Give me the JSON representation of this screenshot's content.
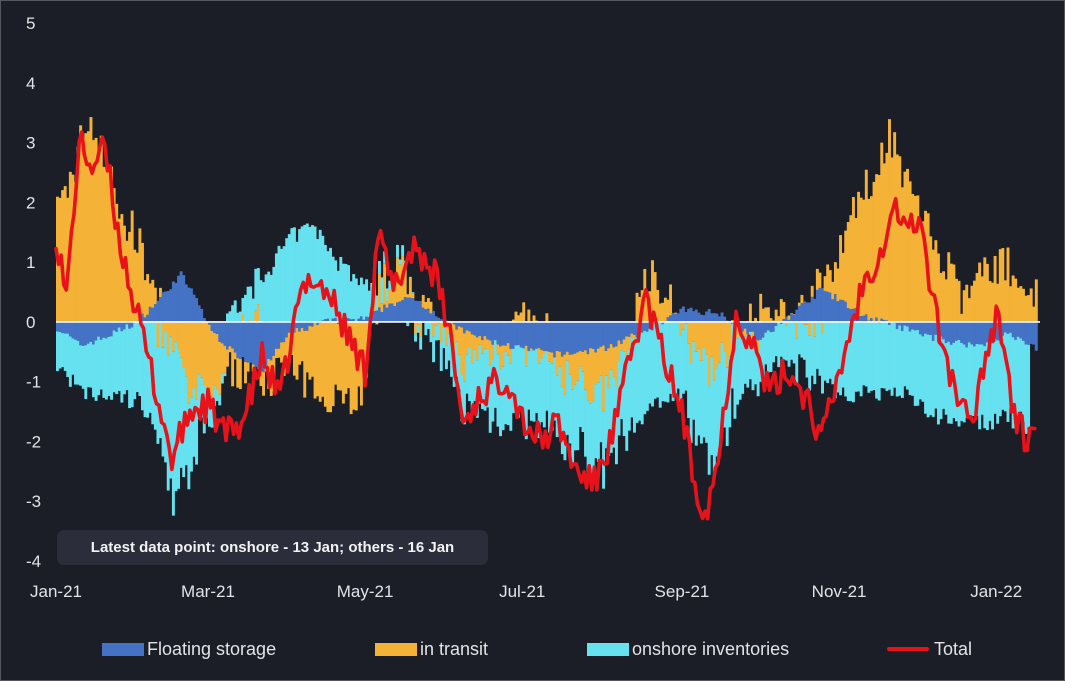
{
  "chart_data": {
    "type": "stacked-bar-with-line",
    "title": "",
    "xlabel": "",
    "ylabel": "",
    "ylim": [
      -4,
      5
    ],
    "yticks": [
      "5",
      "4",
      "3",
      "2",
      "1",
      "0",
      "-1",
      "-2",
      "-3",
      "-4"
    ],
    "x_tick_labels": [
      "Jan-21",
      "Mar-21",
      "May-21",
      "Jul-21",
      "Sep-21",
      "Nov-21",
      "Jan-22"
    ],
    "x_tick_dates": [
      "2021-01-01",
      "2021-03-01",
      "2021-05-01",
      "2021-07-01",
      "2021-09-01",
      "2021-11-01",
      "2022-01-01"
    ],
    "x_range": [
      "2021-01-01",
      "2022-01-18"
    ],
    "note": "Latest data point: onshore - 13 Jan; others - 16 Jan",
    "colors": {
      "floating": "#4472c4",
      "transit": "#f4b336",
      "onshore": "#66e1ef",
      "total": "#e8121a",
      "zero_line": "#ffffff"
    },
    "series": [
      {
        "name": "Floating storage",
        "key": "floating",
        "anchors": [
          [
            "2021-01-01",
            -0.1
          ],
          [
            "2021-01-10",
            -0.4
          ],
          [
            "2021-01-20",
            -0.25
          ],
          [
            "2021-02-01",
            0.0
          ],
          [
            "2021-02-10",
            0.4
          ],
          [
            "2021-02-18",
            0.8
          ],
          [
            "2021-02-25",
            0.3
          ],
          [
            "2021-03-01",
            -0.1
          ],
          [
            "2021-03-10",
            -0.5
          ],
          [
            "2021-03-22",
            -0.8
          ],
          [
            "2021-04-01",
            -0.2
          ],
          [
            "2021-04-15",
            0.0
          ],
          [
            "2021-05-01",
            0.05
          ],
          [
            "2021-05-10",
            0.3
          ],
          [
            "2021-05-20",
            0.4
          ],
          [
            "2021-06-01",
            0.0
          ],
          [
            "2021-06-10",
            -0.2
          ],
          [
            "2021-06-20",
            -0.35
          ],
          [
            "2021-07-01",
            -0.45
          ],
          [
            "2021-07-15",
            -0.55
          ],
          [
            "2021-08-01",
            -0.45
          ],
          [
            "2021-08-15",
            -0.2
          ],
          [
            "2021-09-01",
            0.2
          ],
          [
            "2021-09-15",
            0.15
          ],
          [
            "2021-10-01",
            -0.3
          ],
          [
            "2021-10-15",
            0.2
          ],
          [
            "2021-10-25",
            0.55
          ],
          [
            "2021-11-01",
            0.35
          ],
          [
            "2021-11-10",
            0.1
          ],
          [
            "2021-11-25",
            -0.1
          ],
          [
            "2021-12-10",
            -0.3
          ],
          [
            "2021-12-25",
            -0.4
          ],
          [
            "2022-01-05",
            -0.2
          ],
          [
            "2022-01-16",
            -0.45
          ]
        ]
      },
      {
        "name": "in transit",
        "key": "transit",
        "anchors": [
          [
            "2021-01-01",
            1.8
          ],
          [
            "2021-01-08",
            2.6
          ],
          [
            "2021-01-12",
            3.4
          ],
          [
            "2021-01-18",
            3.0
          ],
          [
            "2021-01-25",
            1.8
          ],
          [
            "2021-02-01",
            1.4
          ],
          [
            "2021-02-08",
            0.0
          ],
          [
            "2021-02-15",
            -0.5
          ],
          [
            "2021-02-22",
            -1.3
          ],
          [
            "2021-03-01",
            -1.1
          ],
          [
            "2021-03-10",
            -0.3
          ],
          [
            "2021-03-20",
            0.0
          ],
          [
            "2021-04-01",
            -0.6
          ],
          [
            "2021-04-10",
            -1.1
          ],
          [
            "2021-04-20",
            -1.2
          ],
          [
            "2021-04-28",
            -1.3
          ],
          [
            "2021-05-05",
            0.2
          ],
          [
            "2021-05-12",
            0.6
          ],
          [
            "2021-05-20",
            0.1
          ],
          [
            "2021-06-01",
            -0.4
          ],
          [
            "2021-06-10",
            -0.5
          ],
          [
            "2021-06-20",
            -0.1
          ],
          [
            "2021-07-01",
            0.0
          ],
          [
            "2021-07-15",
            -0.3
          ],
          [
            "2021-08-01",
            -0.8
          ],
          [
            "2021-08-10",
            -0.3
          ],
          [
            "2021-08-18",
            0.8
          ],
          [
            "2021-08-25",
            0.6
          ],
          [
            "2021-09-01",
            -0.3
          ],
          [
            "2021-09-10",
            -0.8
          ],
          [
            "2021-09-18",
            -0.5
          ],
          [
            "2021-09-25",
            0.2
          ],
          [
            "2021-10-05",
            0.1
          ],
          [
            "2021-10-15",
            0.0
          ],
          [
            "2021-10-25",
            0.1
          ],
          [
            "2021-11-01",
            1.0
          ],
          [
            "2021-11-08",
            1.8
          ],
          [
            "2021-11-15",
            2.5
          ],
          [
            "2021-11-20",
            3.2
          ],
          [
            "2021-11-26",
            2.4
          ],
          [
            "2021-12-05",
            1.6
          ],
          [
            "2021-12-12",
            0.9
          ],
          [
            "2021-12-20",
            0.3
          ],
          [
            "2021-12-28",
            1.0
          ],
          [
            "2022-01-05",
            0.9
          ],
          [
            "2022-01-10",
            0.6
          ],
          [
            "2022-01-16",
            0.5
          ]
        ]
      },
      {
        "name": "onshore inventories",
        "key": "onshore",
        "anchors": [
          [
            "2021-01-01",
            -0.6
          ],
          [
            "2021-01-10",
            -0.8
          ],
          [
            "2021-01-20",
            -1.0
          ],
          [
            "2021-02-01",
            -1.3
          ],
          [
            "2021-02-10",
            -1.8
          ],
          [
            "2021-02-15",
            -2.6
          ],
          [
            "2021-02-22",
            -1.2
          ],
          [
            "2021-03-01",
            -0.5
          ],
          [
            "2021-03-10",
            0.2
          ],
          [
            "2021-03-20",
            0.6
          ],
          [
            "2021-04-01",
            1.4
          ],
          [
            "2021-04-10",
            1.6
          ],
          [
            "2021-04-20",
            1.0
          ],
          [
            "2021-05-01",
            0.5
          ],
          [
            "2021-05-10",
            0.2
          ],
          [
            "2021-05-20",
            0.0
          ],
          [
            "2021-06-01",
            -0.5
          ],
          [
            "2021-06-10",
            -0.8
          ],
          [
            "2021-06-20",
            -1.1
          ],
          [
            "2021-07-01",
            -1.1
          ],
          [
            "2021-07-15",
            -1.1
          ],
          [
            "2021-08-01",
            -1.2
          ],
          [
            "2021-08-15",
            -1.4
          ],
          [
            "2021-09-01",
            -1.2
          ],
          [
            "2021-09-10",
            -1.6
          ],
          [
            "2021-09-20",
            -1.2
          ],
          [
            "2021-10-01",
            -0.6
          ],
          [
            "2021-10-15",
            -0.6
          ],
          [
            "2021-11-01",
            -1.2
          ],
          [
            "2021-11-10",
            -1.2
          ],
          [
            "2021-11-25",
            -1.1
          ],
          [
            "2021-12-10",
            -1.3
          ],
          [
            "2021-12-25",
            -1.3
          ],
          [
            "2022-01-05",
            -1.4
          ],
          [
            "2022-01-13",
            -1.35
          ]
        ]
      },
      {
        "name": "Total",
        "key": "total",
        "anchors": [
          [
            "2021-01-01",
            1.5
          ],
          [
            "2021-01-05",
            0.4
          ],
          [
            "2021-01-10",
            3.0
          ],
          [
            "2021-01-15",
            2.6
          ],
          [
            "2021-01-20",
            2.9
          ],
          [
            "2021-01-25",
            1.5
          ],
          [
            "2021-02-01",
            0.2
          ],
          [
            "2021-02-08",
            -1.0
          ],
          [
            "2021-02-15",
            -2.3
          ],
          [
            "2021-02-22",
            -1.5
          ],
          [
            "2021-03-01",
            -1.4
          ],
          [
            "2021-03-08",
            -1.9
          ],
          [
            "2021-03-15",
            -1.6
          ],
          [
            "2021-03-22",
            -0.6
          ],
          [
            "2021-03-29",
            -1.3
          ],
          [
            "2021-04-05",
            0.3
          ],
          [
            "2021-04-10",
            0.8
          ],
          [
            "2021-04-18",
            0.4
          ],
          [
            "2021-04-25",
            -0.3
          ],
          [
            "2021-05-01",
            -0.8
          ],
          [
            "2021-05-06",
            1.5
          ],
          [
            "2021-05-12",
            0.5
          ],
          [
            "2021-05-20",
            1.3
          ],
          [
            "2021-05-28",
            0.8
          ],
          [
            "2021-06-03",
            -0.2
          ],
          [
            "2021-06-08",
            -1.7
          ],
          [
            "2021-06-15",
            -1.2
          ],
          [
            "2021-06-25",
            -0.9
          ],
          [
            "2021-07-01",
            -1.6
          ],
          [
            "2021-07-08",
            -2.0
          ],
          [
            "2021-07-15",
            -1.7
          ],
          [
            "2021-07-22",
            -2.5
          ],
          [
            "2021-07-29",
            -2.7
          ],
          [
            "2021-08-05",
            -1.9
          ],
          [
            "2021-08-12",
            -0.6
          ],
          [
            "2021-08-18",
            0.4
          ],
          [
            "2021-08-25",
            -0.6
          ],
          [
            "2021-09-01",
            -1.5
          ],
          [
            "2021-09-05",
            -2.5
          ],
          [
            "2021-09-10",
            -3.2
          ],
          [
            "2021-09-15",
            -2.3
          ],
          [
            "2021-09-22",
            0.1
          ],
          [
            "2021-09-28",
            -0.3
          ],
          [
            "2021-10-05",
            -1.2
          ],
          [
            "2021-10-12",
            -0.8
          ],
          [
            "2021-10-20",
            -1.3
          ],
          [
            "2021-10-25",
            -2.0
          ],
          [
            "2021-10-30",
            -1.2
          ],
          [
            "2021-11-05",
            -0.2
          ],
          [
            "2021-11-10",
            0.6
          ],
          [
            "2021-11-18",
            1.3
          ],
          [
            "2021-11-22",
            2.0
          ],
          [
            "2021-11-28",
            1.5
          ],
          [
            "2021-12-02",
            1.8
          ],
          [
            "2021-12-08",
            0.2
          ],
          [
            "2021-12-15",
            -1.0
          ],
          [
            "2021-12-22",
            -1.8
          ],
          [
            "2021-12-28",
            -0.5
          ],
          [
            "2022-01-02",
            0.2
          ],
          [
            "2022-01-08",
            -1.6
          ],
          [
            "2022-01-13",
            -2.0
          ],
          [
            "2022-01-16",
            -1.6
          ]
        ]
      }
    ]
  },
  "legend": {
    "items": [
      {
        "label": "Floating storage",
        "color": "#4472c4"
      },
      {
        "label": "in transit",
        "color": "#f4b336"
      },
      {
        "label": "onshore inventories",
        "color": "#66e1ef"
      },
      {
        "label": "Total",
        "color": "#e8121a"
      }
    ]
  }
}
